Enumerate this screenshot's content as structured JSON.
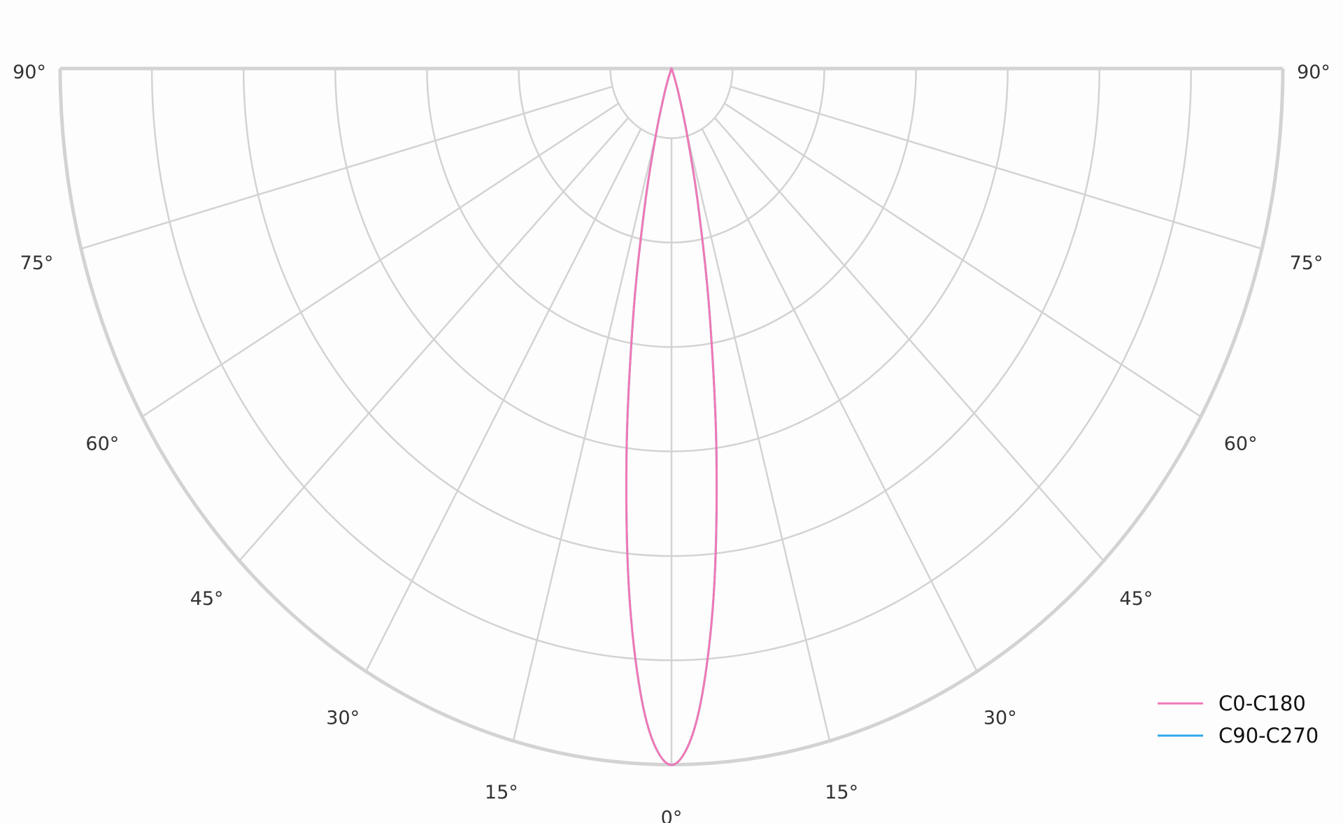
{
  "chart_data": {
    "type": "polar",
    "subtype": "half-polar luminous intensity distribution",
    "title": "",
    "angle_ticks": [
      "0°",
      "15°",
      "30°",
      "45°",
      "60°",
      "75°",
      "90°"
    ],
    "angle_tick_values": [
      0,
      15,
      30,
      45,
      60,
      75,
      90
    ],
    "radial_rings": [
      0.1,
      0.25,
      0.4,
      0.55,
      0.7,
      0.85,
      1.0
    ],
    "rlim": [
      0,
      1
    ],
    "radial_labels_shown": false,
    "grid": true,
    "legend_position": "bottom-right",
    "angles": [
      0,
      2.5,
      5,
      7.5,
      10,
      12.5,
      15,
      17.5,
      20,
      25,
      30,
      45,
      60,
      75,
      90
    ],
    "series": [
      {
        "name": "C90-C270",
        "color": "#2ea8e8",
        "values": [
          1,
          0.938,
          0.776,
          0.564,
          0.36,
          0.202,
          0.099,
          0.042,
          0.016,
          0.0014,
          0,
          0,
          0,
          0,
          0
        ]
      },
      {
        "name": "C0-C180",
        "color": "#f178b6",
        "values": [
          1,
          0.938,
          0.776,
          0.564,
          0.36,
          0.202,
          0.099,
          0.042,
          0.016,
          0.0014,
          0,
          0,
          0,
          0,
          0
        ]
      }
    ],
    "grid_color": "#d3d3d3"
  }
}
